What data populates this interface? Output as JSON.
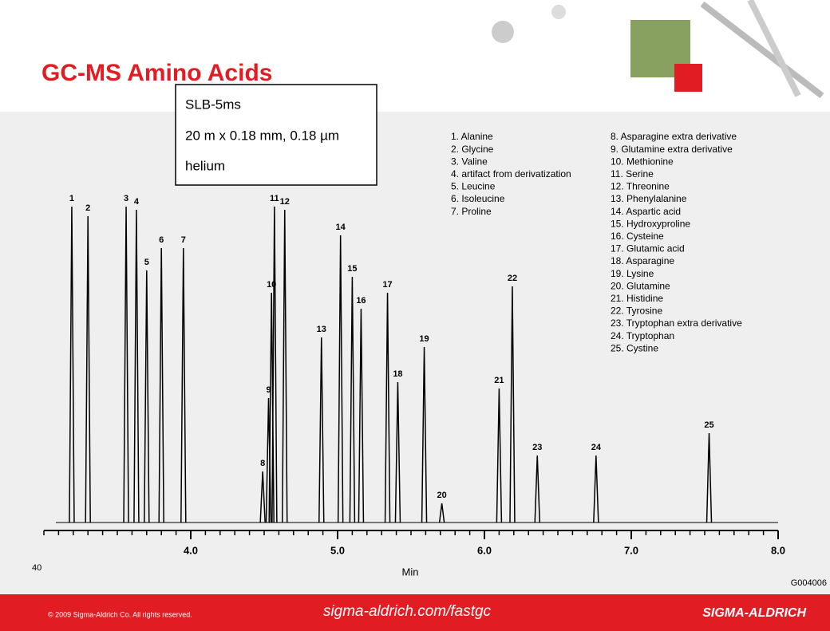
{
  "header": {
    "title": "GC-MS Amino Acids"
  },
  "column_box": [
    "SLB-5ms",
    "20 m x 0.18 mm, 0.18 µm",
    "helium"
  ],
  "chart_data": {
    "type": "chromatogram",
    "x_label": "Min",
    "corner_label": "40",
    "code": "G004006",
    "xlim": [
      3,
      8
    ],
    "ylim": [
      0,
      100
    ],
    "xticks": [
      {
        "value": 4,
        "label": "4.0"
      },
      {
        "value": 5,
        "label": "5.0"
      },
      {
        "value": 6,
        "label": "6.0"
      },
      {
        "value": 7,
        "label": "7.0"
      },
      {
        "value": 8,
        "label": "8.0"
      }
    ],
    "color": "#000000",
    "peaks": {
      "labels": [
        "1",
        "2",
        "3",
        "4",
        "5",
        "6",
        "7",
        "8",
        "9",
        "10",
        "11",
        "12",
        "13",
        "14",
        "15",
        "16",
        "17",
        "18",
        "19",
        "20",
        "21",
        "22",
        "23",
        "24",
        "25"
      ],
      "x": [
        3.19,
        3.3,
        3.56,
        3.63,
        3.7,
        3.8,
        3.95,
        4.49,
        4.53,
        4.55,
        4.57,
        4.64,
        4.89,
        5.02,
        5.1,
        5.16,
        5.34,
        5.41,
        5.59,
        5.71,
        6.1,
        6.19,
        6.36,
        6.76,
        7.53
      ],
      "values": [
        99,
        96,
        99,
        98,
        79,
        86,
        86,
        16,
        39,
        72,
        99,
        98,
        58,
        90,
        77,
        67,
        72,
        44,
        55,
        6,
        42,
        74,
        21,
        21,
        28
      ]
    },
    "legend": [
      [
        "1.  Alanine",
        "2.  Glycine",
        "3.  Valine",
        "4.  artifact from derivatization",
        "5.  Leucine",
        "6.  Isoleucine",
        "7.  Proline"
      ],
      [
        "8.  Asparagine extra derivative",
        "9.  Glutamine extra derivative",
        "10.  Methionine",
        "11.  Serine",
        "12.  Threonine",
        "13.  Phenylalanine",
        "14.  Aspartic acid",
        "15.  Hydroxyproline",
        "16.  Cysteine",
        "17.  Glutamic acid",
        "18.  Asparagine",
        "19.  Lysine",
        "20.  Glutamine",
        "21.  Histidine",
        "22.  Tyrosine",
        "23.  Tryptophan extra derivative",
        "24.  Tryptophan",
        "25.  Cystine"
      ]
    ]
  },
  "footer": {
    "copyright": "© 2009 Sigma-Aldrich Co. All rights reserved.",
    "url": "sigma-aldrich.com/fastgc",
    "brand": "SIGMA-ALDRICH"
  }
}
